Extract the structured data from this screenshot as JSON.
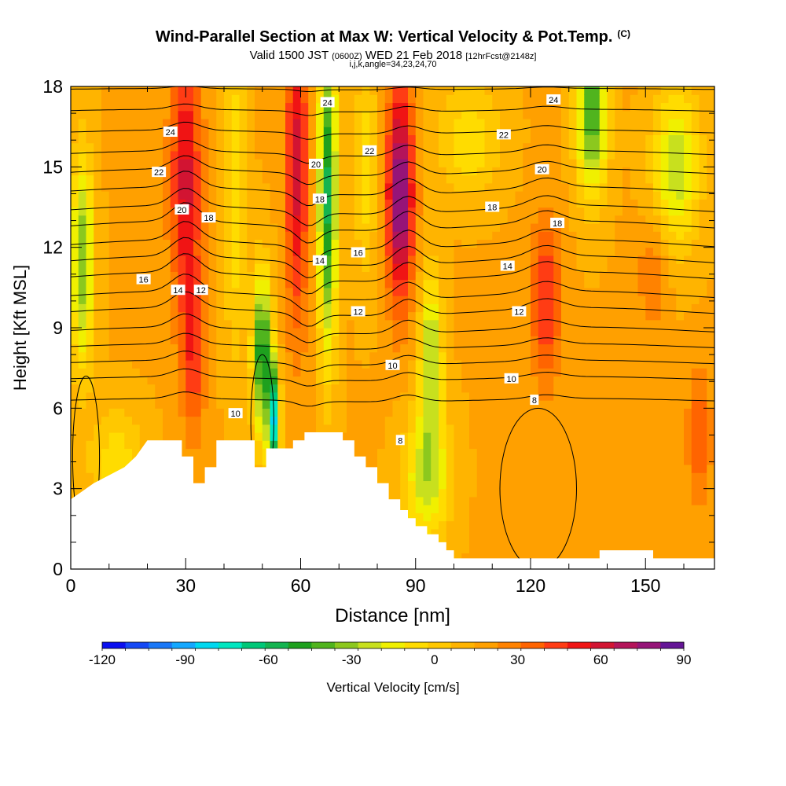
{
  "title": "Wind-Parallel Section at Max W: Vertical Velocity & Pot.Temp.",
  "copyright": "(C)",
  "subtitle_main": "Valid 1500 JST",
  "subtitle_utc": "(0600Z)",
  "subtitle_date": "WED 21 Feb 2018",
  "subtitle_fcst": "[12hrFcst@2148z]",
  "subtitle_indices": "i,j,k,angle=34,23,24,70",
  "colorbar_label": "Vertical Velocity [cm/s]",
  "colorbar_colors": [
    "#0a0ff0",
    "#1448f5",
    "#1a78f8",
    "#14a8ff",
    "#00d8f0",
    "#00e6c0",
    "#00c878",
    "#14b450",
    "#1ea01e",
    "#50b41e",
    "#8cc81e",
    "#c8e01e",
    "#f0f000",
    "#ffdc00",
    "#ffc800",
    "#ffb400",
    "#ffa000",
    "#ff8200",
    "#ff6400",
    "#ff3c14",
    "#f01414",
    "#d21432",
    "#b4145a",
    "#961478",
    "#641496"
  ],
  "colorbar_ticks": [
    "-120",
    "-90",
    "-60",
    "-30",
    "0",
    "30",
    "60",
    "90"
  ],
  "chart_data": {
    "type": "heatmap",
    "xlabel": "Distance [nm]",
    "ylabel": "Height [Kft MSL]",
    "xlim": [
      0,
      168
    ],
    "ylim": [
      0,
      18
    ],
    "x_ticks": [
      "0",
      "30",
      "60",
      "90",
      "120",
      "150"
    ],
    "y_ticks": [
      "0",
      "3",
      "6",
      "9",
      "12",
      "15",
      "18"
    ],
    "value_range": [
      -120,
      90
    ],
    "velocity_cells": [
      {
        "x": 3,
        "y": 11.5,
        "sx": 3,
        "sy": 4,
        "v": -35
      },
      {
        "x": 30,
        "y": 14.5,
        "sx": 4,
        "sy": 5,
        "v": 60
      },
      {
        "x": 32,
        "y": 8,
        "sx": 3,
        "sy": 3,
        "v": 45
      },
      {
        "x": 43,
        "y": 14,
        "sx": 3,
        "sy": 6,
        "v": -10
      },
      {
        "x": 50,
        "y": 8,
        "sx": 2.5,
        "sy": 3,
        "v": -55
      },
      {
        "x": 53,
        "y": 5.5,
        "sx": 1.5,
        "sy": 2,
        "v": -70
      },
      {
        "x": 59,
        "y": 15,
        "sx": 3,
        "sy": 6,
        "v": 60
      },
      {
        "x": 67,
        "y": 14,
        "sx": 2.5,
        "sy": 6,
        "v": -55
      },
      {
        "x": 86,
        "y": 14,
        "sx": 3.5,
        "sy": 4,
        "v": 85
      },
      {
        "x": 94,
        "y": 8,
        "sx": 3,
        "sy": 3,
        "v": -30
      },
      {
        "x": 93,
        "y": 3.5,
        "sx": 6,
        "sy": 2.5,
        "v": -25
      },
      {
        "x": 124,
        "y": 10,
        "sx": 4,
        "sy": 3,
        "v": 50
      },
      {
        "x": 136,
        "y": 17,
        "sx": 4,
        "sy": 3,
        "v": -45
      },
      {
        "x": 158,
        "y": 15,
        "sx": 6,
        "sy": 3,
        "v": -25
      },
      {
        "x": 164,
        "y": 5,
        "sx": 3,
        "sy": 2.5,
        "v": 40
      },
      {
        "x": 126,
        "y": 3,
        "sx": 10,
        "sy": 2.5,
        "v": 18
      },
      {
        "x": 152,
        "y": 11,
        "sx": 4,
        "sy": 2,
        "v": 32
      },
      {
        "x": 12,
        "y": 4,
        "sx": 7,
        "sy": 2,
        "v": -8
      },
      {
        "x": 104,
        "y": 16,
        "sx": 8,
        "sy": 2,
        "v": -10
      },
      {
        "x": 77,
        "y": 15,
        "sx": 3,
        "sy": 4,
        "v": -8
      }
    ],
    "terrain": [
      [
        0,
        2.6
      ],
      [
        3,
        2.9
      ],
      [
        6,
        3.2
      ],
      [
        10,
        3.5
      ],
      [
        14,
        3.8
      ],
      [
        17,
        4.2
      ],
      [
        20,
        4.8
      ],
      [
        29,
        4.8
      ],
      [
        29,
        4.2
      ],
      [
        32,
        4.2
      ],
      [
        32,
        3.2
      ],
      [
        35,
        3.2
      ],
      [
        35,
        3.8
      ],
      [
        38,
        3.8
      ],
      [
        38,
        4.8
      ],
      [
        48,
        4.8
      ],
      [
        48,
        3.8
      ],
      [
        51,
        3.8
      ],
      [
        51,
        4.5
      ],
      [
        58,
        4.5
      ],
      [
        58,
        4.8
      ],
      [
        61,
        4.8
      ],
      [
        61,
        5.1
      ],
      [
        71,
        5.1
      ],
      [
        71,
        4.8
      ],
      [
        74,
        4.8
      ],
      [
        74,
        4.2
      ],
      [
        77,
        4.2
      ],
      [
        77,
        3.8
      ],
      [
        80,
        3.8
      ],
      [
        80,
        3.2
      ],
      [
        83,
        3.2
      ],
      [
        83,
        2.6
      ],
      [
        86,
        2.6
      ],
      [
        86,
        2.2
      ],
      [
        88,
        2.2
      ],
      [
        88,
        1.9
      ],
      [
        90,
        1.9
      ],
      [
        90,
        1.6
      ],
      [
        93,
        1.6
      ],
      [
        93,
        1.3
      ],
      [
        96,
        1.3
      ],
      [
        96,
        1.0
      ],
      [
        98,
        1.0
      ],
      [
        98,
        0.7
      ],
      [
        100,
        0.7
      ],
      [
        100,
        0.4
      ],
      [
        138,
        0.4
      ],
      [
        138,
        0.7
      ],
      [
        152,
        0.7
      ],
      [
        152,
        0.4
      ],
      [
        168,
        0.4
      ]
    ],
    "isentrope_labels": [
      {
        "text": "24",
        "x": 26,
        "y": 16.3
      },
      {
        "text": "22",
        "x": 23,
        "y": 14.8
      },
      {
        "text": "20",
        "x": 29,
        "y": 13.4
      },
      {
        "text": "18",
        "x": 36,
        "y": 13.1
      },
      {
        "text": "16",
        "x": 19,
        "y": 10.8
      },
      {
        "text": "14",
        "x": 28,
        "y": 10.4
      },
      {
        "text": "12",
        "x": 34,
        "y": 10.4
      },
      {
        "text": "10",
        "x": 43,
        "y": 5.8
      },
      {
        "text": "24",
        "x": 67,
        "y": 17.4
      },
      {
        "text": "22",
        "x": 78,
        "y": 15.6
      },
      {
        "text": "20",
        "x": 64,
        "y": 15.1
      },
      {
        "text": "18",
        "x": 65,
        "y": 13.8
      },
      {
        "text": "16",
        "x": 75,
        "y": 11.8
      },
      {
        "text": "14",
        "x": 65,
        "y": 11.5
      },
      {
        "text": "12",
        "x": 75,
        "y": 9.6
      },
      {
        "text": "10",
        "x": 84,
        "y": 7.6
      },
      {
        "text": "8",
        "x": 86,
        "y": 4.8
      },
      {
        "text": "24",
        "x": 126,
        "y": 17.5
      },
      {
        "text": "22",
        "x": 113,
        "y": 16.2
      },
      {
        "text": "20",
        "x": 123,
        "y": 14.9
      },
      {
        "text": "18",
        "x": 110,
        "y": 13.5
      },
      {
        "text": "18",
        "x": 127,
        "y": 12.9
      },
      {
        "text": "14",
        "x": 114,
        "y": 11.3
      },
      {
        "text": "12",
        "x": 117,
        "y": 9.6
      },
      {
        "text": "10",
        "x": 115,
        "y": 7.1
      },
      {
        "text": "8",
        "x": 121,
        "y": 6.3
      }
    ],
    "isentrope_levels": [
      {
        "base": 17.9,
        "amp": 0.1
      },
      {
        "base": 17.1,
        "amp": 0.2
      },
      {
        "base": 16.3,
        "amp": 0.3
      },
      {
        "base": 15.5,
        "amp": 0.4
      },
      {
        "base": 14.8,
        "amp": 0.5
      },
      {
        "base": 14.1,
        "amp": 0.6
      },
      {
        "base": 13.4,
        "amp": 0.65
      },
      {
        "base": 12.8,
        "amp": 0.7
      },
      {
        "base": 12.1,
        "amp": 0.7
      },
      {
        "base": 11.5,
        "amp": 0.7
      },
      {
        "base": 10.9,
        "amp": 0.7
      },
      {
        "base": 10.2,
        "amp": 0.65
      },
      {
        "base": 9.6,
        "amp": 0.6
      },
      {
        "base": 8.9,
        "amp": 0.5
      },
      {
        "base": 8.3,
        "amp": 0.4
      },
      {
        "base": 7.7,
        "amp": 0.35
      },
      {
        "base": 7.1,
        "amp": 0.3
      },
      {
        "base": 6.3,
        "amp": 0.25
      }
    ]
  }
}
